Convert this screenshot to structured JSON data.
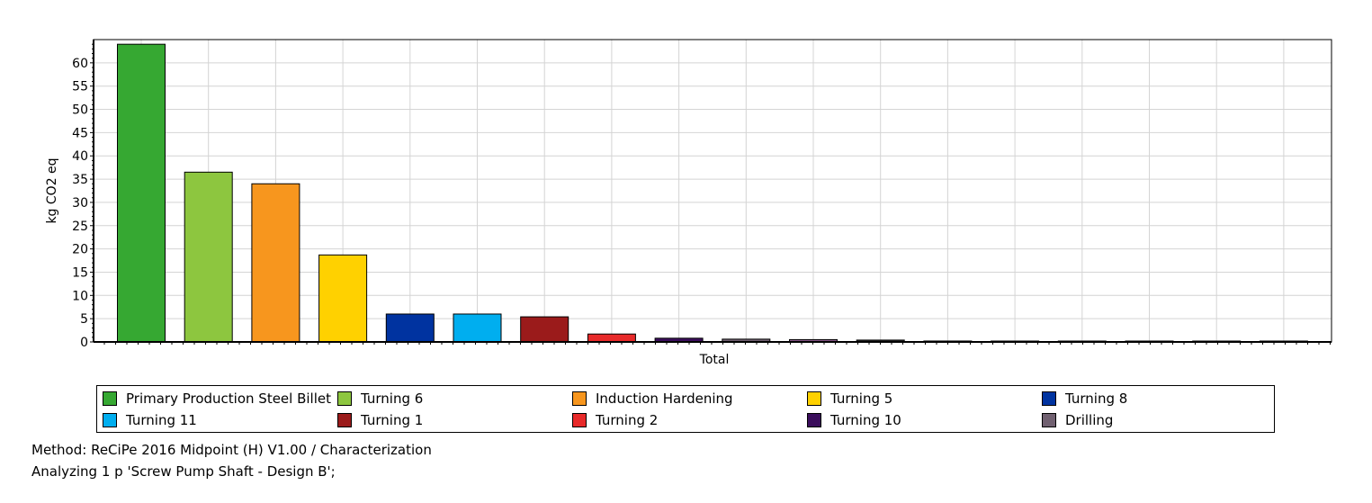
{
  "chart_data": {
    "type": "bar",
    "xlabel": "Total",
    "ylabel": "kg CO2 eq",
    "ylim": [
      0,
      65
    ],
    "yticks": [
      0,
      5,
      10,
      15,
      20,
      25,
      30,
      35,
      40,
      45,
      50,
      55,
      60
    ],
    "grid": true,
    "legend_position": "bottom",
    "series": [
      {
        "name": "Primary Production Steel Billet",
        "value": 64.0,
        "color": "#36A832"
      },
      {
        "name": "Turning 6",
        "value": 36.5,
        "color": "#8DC63F"
      },
      {
        "name": "Induction Hardening",
        "value": 34.0,
        "color": "#F7961E"
      },
      {
        "name": "Turning 5",
        "value": 18.7,
        "color": "#FFD100"
      },
      {
        "name": "Turning 8",
        "value": 6.0,
        "color": "#0033A0"
      },
      {
        "name": "Turning 11",
        "value": 6.0,
        "color": "#00AEEF"
      },
      {
        "name": "Turning 1",
        "value": 5.4,
        "color": "#9B1B1B"
      },
      {
        "name": "Turning 2",
        "value": 1.7,
        "color": "#E82A2A"
      },
      {
        "name": "Turning 10",
        "value": 0.8,
        "color": "#3B0E5C"
      },
      {
        "name": "Drilling",
        "value": 0.6,
        "color": "#706070"
      },
      {
        "name": "",
        "value": 0.5,
        "color": "#8A5A8A"
      },
      {
        "name": "",
        "value": 0.4,
        "color": "#2B2B2B"
      },
      {
        "name": "",
        "value": 0.2,
        "color": "#C8A8B0"
      },
      {
        "name": "",
        "value": 0.05,
        "color": "#606060"
      },
      {
        "name": "",
        "value": 0.15,
        "color": "#E0407A"
      },
      {
        "name": "",
        "value": 0.1,
        "color": "#5AB0B8"
      },
      {
        "name": "",
        "value": 0.08,
        "color": "#C060A0"
      },
      {
        "name": "",
        "value": 0.12,
        "color": "#40A070"
      }
    ]
  },
  "footer": {
    "method": "Method: ReCiPe 2016 Midpoint (H) V1.00 / Characterization",
    "analyzing": "Analyzing 1 p 'Screw Pump Shaft - Design B';"
  }
}
